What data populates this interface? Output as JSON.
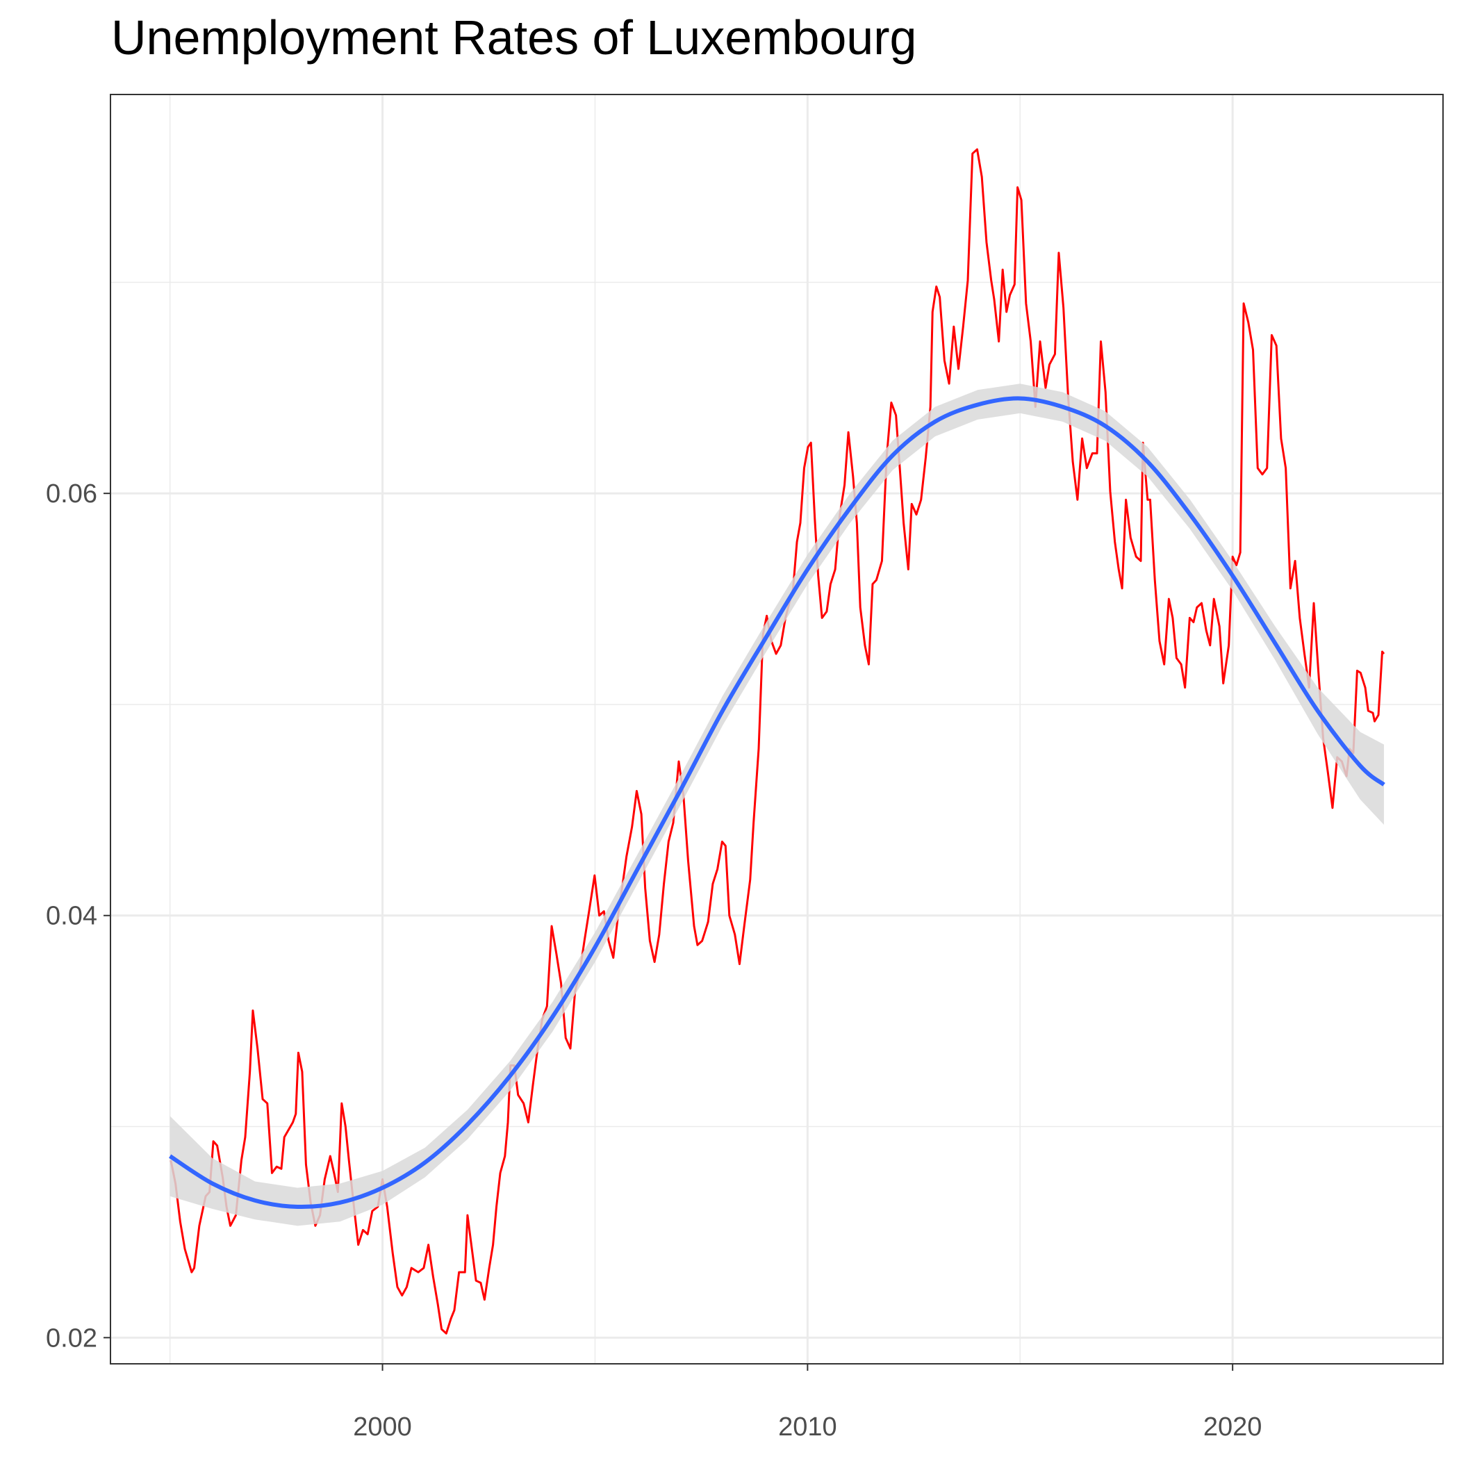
{
  "chart_data": {
    "type": "line",
    "title": "Unemployment Rates of Luxembourg",
    "xlim": [
      1993.6,
      2024.95
    ],
    "ylim": [
      0.01876,
      0.0789
    ],
    "xticks": [
      2000,
      2010,
      2020
    ],
    "yticks": [
      0.02,
      0.04,
      0.06
    ],
    "x_minor_grid": [
      1995,
      2005,
      2015
    ],
    "y_minor_grid": [
      0.03,
      0.05,
      0.07
    ],
    "grid": true,
    "x": [
      1995.02,
      1995.13,
      1995.24,
      1995.35,
      1995.51,
      1995.57,
      1995.69,
      1995.84,
      1995.93,
      1996.02,
      1996.11,
      1996.24,
      1996.33,
      1996.42,
      1996.55,
      1996.68,
      1996.77,
      1996.88,
      1996.95,
      1997.06,
      1997.18,
      1997.29,
      1997.4,
      1997.51,
      1997.62,
      1997.69,
      1997.89,
      1997.96,
      1998.02,
      1998.11,
      1998.2,
      1998.31,
      1998.42,
      1998.53,
      1998.64,
      1998.77,
      1998.86,
      1998.95,
      1999.04,
      1999.13,
      1999.21,
      1999.35,
      1999.43,
      1999.54,
      1999.65,
      1999.76,
      1999.89,
      2000.0,
      2000.11,
      2000.24,
      2000.35,
      2000.46,
      2000.57,
      2000.68,
      2000.84,
      2000.97,
      2001.08,
      2001.19,
      2001.3,
      2001.39,
      2001.5,
      2001.61,
      2001.69,
      2001.8,
      2001.94,
      2002.0,
      2002.09,
      2002.2,
      2002.31,
      2002.4,
      2002.51,
      2002.6,
      2002.68,
      2002.77,
      2002.88,
      2002.95,
      2003.01,
      2003.1,
      2003.19,
      2003.32,
      2003.43,
      2003.54,
      2003.65,
      2003.76,
      2003.87,
      2003.98,
      2004.09,
      2004.2,
      2004.31,
      2004.42,
      2004.53,
      2004.64,
      2004.75,
      2004.86,
      2004.99,
      2005.1,
      2005.21,
      2005.32,
      2005.43,
      2005.54,
      2005.65,
      2005.74,
      2005.87,
      2005.98,
      2006.09,
      2006.18,
      2006.29,
      2006.4,
      2006.51,
      2006.62,
      2006.73,
      2006.84,
      2006.97,
      2007.08,
      2007.19,
      2007.33,
      2007.41,
      2007.52,
      2007.66,
      2007.77,
      2007.88,
      2007.99,
      2008.07,
      2008.16,
      2008.29,
      2008.4,
      2008.51,
      2008.65,
      2008.73,
      2008.85,
      2008.95,
      2009.04,
      2009.15,
      2009.26,
      2009.37,
      2009.48,
      2009.66,
      2009.75,
      2009.83,
      2009.92,
      2010.01,
      2010.08,
      2010.17,
      2010.25,
      2010.34,
      2010.45,
      2010.54,
      2010.65,
      2010.76,
      2010.87,
      2010.96,
      2011.07,
      2011.16,
      2011.24,
      2011.35,
      2011.44,
      2011.53,
      2011.62,
      2011.75,
      2011.86,
      2011.97,
      2012.08,
      2012.17,
      2012.26,
      2012.37,
      2012.45,
      2012.56,
      2012.67,
      2012.78,
      2012.89,
      2012.94,
      2013.03,
      2013.11,
      2013.22,
      2013.33,
      2013.44,
      2013.55,
      2013.66,
      2013.77,
      2013.88,
      2013.99,
      2014.1,
      2014.21,
      2014.32,
      2014.39,
      2014.5,
      2014.59,
      2014.68,
      2014.76,
      2014.87,
      2014.94,
      2015.03,
      2015.14,
      2015.25,
      2015.36,
      2015.47,
      2015.6,
      2015.69,
      2015.82,
      2015.91,
      2016.02,
      2016.13,
      2016.24,
      2016.35,
      2016.46,
      2016.57,
      2016.7,
      2016.81,
      2016.9,
      2017.01,
      2017.12,
      2017.23,
      2017.32,
      2017.4,
      2017.49,
      2017.6,
      2017.73,
      2017.84,
      2017.89,
      2018.0,
      2018.06,
      2018.17,
      2018.28,
      2018.39,
      2018.5,
      2018.59,
      2018.68,
      2018.79,
      2018.88,
      2018.99,
      2019.08,
      2019.16,
      2019.27,
      2019.38,
      2019.47,
      2019.56,
      2019.69,
      2019.78,
      2019.91,
      2020.0,
      2020.09,
      2020.18,
      2020.26,
      2020.37,
      2020.48,
      2020.59,
      2020.7,
      2020.81,
      2020.92,
      2021.03,
      2021.14,
      2021.25,
      2021.36,
      2021.47,
      2021.58,
      2021.69,
      2021.8,
      2021.91,
      2022.02,
      2022.13,
      2022.24,
      2022.35,
      2022.46,
      2022.57,
      2022.68,
      2022.75,
      2022.84,
      2022.93,
      2023.01,
      2023.12,
      2023.19,
      2023.3,
      2023.34,
      2023.43,
      2023.52,
      2023.56
    ],
    "series": [
      {
        "color": "#ff0000",
        "values": [
          0.0284,
          0.0273,
          0.0255,
          0.0242,
          0.0231,
          0.0233,
          0.0253,
          0.0267,
          0.0269,
          0.0293,
          0.0291,
          0.0276,
          0.0262,
          0.0253,
          0.0258,
          0.0284,
          0.0295,
          0.0326,
          0.0355,
          0.0337,
          0.0313,
          0.0311,
          0.0278,
          0.0281,
          0.028,
          0.0295,
          0.0302,
          0.0306,
          0.0335,
          0.0326,
          0.0282,
          0.0264,
          0.0253,
          0.0258,
          0.0275,
          0.0286,
          0.0278,
          0.0269,
          0.0311,
          0.03,
          0.0284,
          0.0258,
          0.0244,
          0.0251,
          0.0249,
          0.026,
          0.0262,
          0.0275,
          0.0262,
          0.024,
          0.0224,
          0.022,
          0.0224,
          0.0233,
          0.0231,
          0.0233,
          0.0244,
          0.0229,
          0.0216,
          0.0204,
          0.0202,
          0.0209,
          0.0213,
          0.0231,
          0.0231,
          0.0258,
          0.0244,
          0.0227,
          0.0226,
          0.0218,
          0.0233,
          0.0244,
          0.0262,
          0.0278,
          0.0286,
          0.0302,
          0.0329,
          0.0329,
          0.0315,
          0.0311,
          0.0302,
          0.032,
          0.0337,
          0.0351,
          0.0357,
          0.0395,
          0.0382,
          0.0368,
          0.0342,
          0.0337,
          0.0364,
          0.0373,
          0.0388,
          0.0402,
          0.0419,
          0.04,
          0.0402,
          0.0388,
          0.038,
          0.04,
          0.0415,
          0.0428,
          0.0442,
          0.0459,
          0.0448,
          0.0413,
          0.0388,
          0.0378,
          0.0391,
          0.0415,
          0.0435,
          0.0444,
          0.0473,
          0.0457,
          0.0426,
          0.0395,
          0.0386,
          0.0388,
          0.0397,
          0.0415,
          0.0422,
          0.0435,
          0.0433,
          0.04,
          0.0391,
          0.0377,
          0.0395,
          0.0417,
          0.0444,
          0.0479,
          0.0533,
          0.0542,
          0.053,
          0.0524,
          0.0528,
          0.0541,
          0.0555,
          0.0577,
          0.0586,
          0.0612,
          0.0622,
          0.0624,
          0.0588,
          0.0561,
          0.0541,
          0.0544,
          0.0557,
          0.0564,
          0.059,
          0.0604,
          0.0629,
          0.0608,
          0.0586,
          0.0546,
          0.0528,
          0.0519,
          0.0557,
          0.0559,
          0.0568,
          0.0617,
          0.0643,
          0.0637,
          0.0612,
          0.0586,
          0.0564,
          0.0595,
          0.059,
          0.0597,
          0.0617,
          0.0641,
          0.0686,
          0.0698,
          0.0693,
          0.0663,
          0.0652,
          0.0679,
          0.0659,
          0.0679,
          0.0701,
          0.0761,
          0.0763,
          0.075,
          0.0719,
          0.0701,
          0.0692,
          0.0672,
          0.0706,
          0.0686,
          0.0694,
          0.0699,
          0.0745,
          0.0739,
          0.069,
          0.0672,
          0.0641,
          0.0672,
          0.065,
          0.0661,
          0.0666,
          0.0714,
          0.0688,
          0.0646,
          0.0615,
          0.0597,
          0.0626,
          0.0612,
          0.0619,
          0.0619,
          0.0672,
          0.0648,
          0.0601,
          0.0577,
          0.0564,
          0.0555,
          0.0597,
          0.0579,
          0.057,
          0.0568,
          0.0624,
          0.0597,
          0.0597,
          0.0559,
          0.053,
          0.0519,
          0.055,
          0.0541,
          0.0522,
          0.0519,
          0.0508,
          0.0541,
          0.0539,
          0.0546,
          0.0548,
          0.0535,
          0.0528,
          0.055,
          0.0537,
          0.051,
          0.0528,
          0.057,
          0.0566,
          0.0572,
          0.069,
          0.0681,
          0.0668,
          0.0612,
          0.0609,
          0.0612,
          0.0675,
          0.067,
          0.0626,
          0.0612,
          0.0555,
          0.0568,
          0.0541,
          0.0524,
          0.0508,
          0.0548,
          0.0515,
          0.0484,
          0.0468,
          0.0451,
          0.0475,
          0.0473,
          0.0466,
          0.0479,
          0.0477,
          0.0516,
          0.0515,
          0.0508,
          0.0497,
          0.0496,
          0.0492,
          0.0495,
          0.0525,
          0.0524
        ]
      }
    ],
    "smooth": {
      "color": "#3366ff",
      "band_color": "#d9d9d9",
      "x": [
        1995,
        1996,
        1997,
        1998,
        1999,
        2000,
        2001,
        2002,
        2003,
        2004,
        2005,
        2006,
        2007,
        2008,
        2009,
        2010,
        2011,
        2012,
        2013,
        2014,
        2015,
        2016,
        2017,
        2018,
        2019,
        2020,
        2021,
        2022,
        2023,
        2023.56
      ],
      "values": [
        0.0286,
        0.0273,
        0.0265,
        0.0262,
        0.0264,
        0.0271,
        0.0283,
        0.0301,
        0.0324,
        0.0352,
        0.0385,
        0.0422,
        0.0459,
        0.0497,
        0.0531,
        0.0564,
        0.0593,
        0.0618,
        0.0634,
        0.0642,
        0.0645,
        0.0641,
        0.0632,
        0.0615,
        0.059,
        0.0561,
        0.0529,
        0.0497,
        0.0471,
        0.0462
      ],
      "lower": [
        0.0267,
        0.0261,
        0.0256,
        0.0253,
        0.0255,
        0.0263,
        0.0276,
        0.0294,
        0.0317,
        0.0345,
        0.0378,
        0.0415,
        0.0452,
        0.049,
        0.0524,
        0.0557,
        0.0586,
        0.0611,
        0.0627,
        0.0635,
        0.0638,
        0.0634,
        0.0625,
        0.0608,
        0.0583,
        0.0554,
        0.0521,
        0.0486,
        0.0455,
        0.0443
      ],
      "upper": [
        0.0305,
        0.0285,
        0.0274,
        0.0271,
        0.0273,
        0.0279,
        0.029,
        0.0308,
        0.0331,
        0.0359,
        0.0392,
        0.0429,
        0.0466,
        0.0504,
        0.0538,
        0.0571,
        0.06,
        0.0625,
        0.0641,
        0.0649,
        0.0652,
        0.0648,
        0.0639,
        0.0622,
        0.0597,
        0.0568,
        0.0537,
        0.0508,
        0.0487,
        0.0481
      ]
    }
  }
}
